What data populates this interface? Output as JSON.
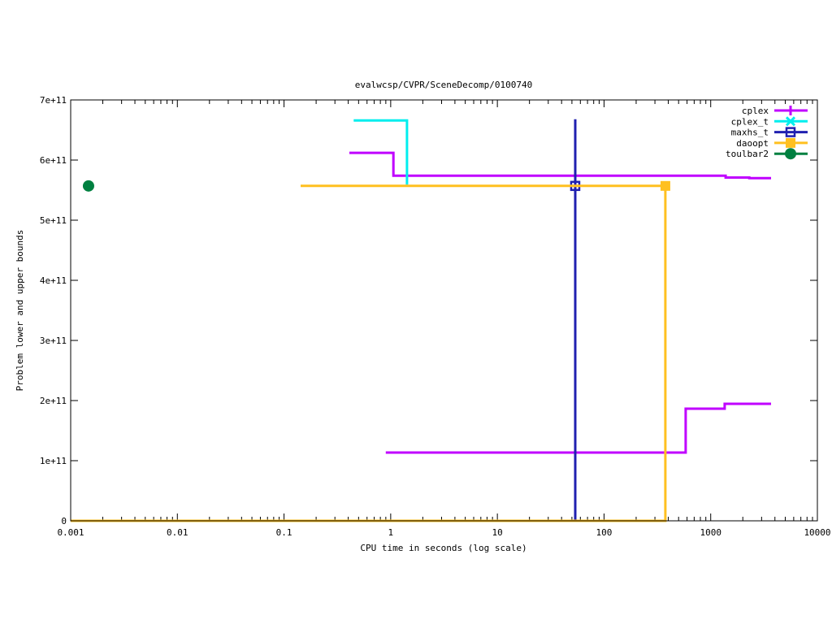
{
  "chart_data": {
    "type": "line",
    "title": "evalwcsp/CVPR/SceneDecomp/0100740",
    "xlabel": "CPU time in seconds (log scale)",
    "ylabel": "Problem lower and upper bounds",
    "xscale": "log",
    "xlim": [
      0.001,
      10000
    ],
    "ylim": [
      0,
      700000000000.0
    ],
    "grid": false,
    "legend_position": "top-right",
    "xticks": [
      {
        "value": 0.001,
        "label": "0.001"
      },
      {
        "value": 0.01,
        "label": "0.01"
      },
      {
        "value": 0.1,
        "label": "0.1"
      },
      {
        "value": 1,
        "label": "1"
      },
      {
        "value": 10,
        "label": "10"
      },
      {
        "value": 100,
        "label": "100"
      },
      {
        "value": 1000,
        "label": "1000"
      },
      {
        "value": 10000,
        "label": "10000"
      }
    ],
    "yticks": [
      {
        "value": 0,
        "label": "0"
      },
      {
        "value": 100000000000.0,
        "label": "1e+11"
      },
      {
        "value": 200000000000.0,
        "label": "2e+11"
      },
      {
        "value": 300000000000.0,
        "label": "3e+11"
      },
      {
        "value": 400000000000.0,
        "label": "4e+11"
      },
      {
        "value": 500000000000.0,
        "label": "5e+11"
      },
      {
        "value": 600000000000.0,
        "label": "6e+11"
      },
      {
        "value": 700000000000.0,
        "label": "7e+11"
      }
    ],
    "series": [
      {
        "name": "cplex",
        "color": "#c000ff",
        "marker": "plus",
        "lines": [
          [
            [
              0.41,
              612000000000.0
            ],
            [
              1.06,
              612000000000.0
            ],
            [
              1.06,
              574000000000.0
            ],
            [
              1380,
              574000000000.0
            ],
            [
              1380,
              571000000000.0
            ],
            [
              2300,
              571000000000.0
            ],
            [
              2300,
              570000000000.0
            ],
            [
              3680,
              570000000000.0
            ]
          ],
          [
            [
              0.9,
              113500000000.0
            ],
            [
              583,
              113500000000.0
            ],
            [
              583,
              186500000000.0
            ],
            [
              1352,
              186500000000.0
            ],
            [
              1352,
              194600000000.0
            ],
            [
              3680,
              194600000000.0
            ]
          ]
        ],
        "points": []
      },
      {
        "name": "cplex_t",
        "color": "#00eeee",
        "marker": "cross",
        "lines": [
          [
            [
              0.45,
              666000000000.0
            ],
            [
              1.42,
              666000000000.0
            ],
            [
              1.42,
              559000000000.0
            ]
          ]
        ],
        "points": []
      },
      {
        "name": "maxhs_t",
        "color": "#2020b0",
        "marker": "open-square",
        "lines": [
          [
            [
              53.7,
              0
            ],
            [
              53.7,
              668000000000.0
            ]
          ]
        ],
        "points": [
          [
            53.7,
            557000000000.0
          ]
        ]
      },
      {
        "name": "daoopt",
        "color": "#ffc020",
        "marker": "filled-square",
        "lines": [
          [
            [
              0.143,
              557000000000.0
            ],
            [
              376,
              557000000000.0
            ]
          ],
          [
            [
              0.001,
              0
            ],
            [
              376,
              0
            ],
            [
              376,
              557000000000.0
            ]
          ]
        ],
        "points": [
          [
            376,
            557000000000.0
          ]
        ]
      },
      {
        "name": "toulbar2",
        "color": "#008040",
        "marker": "filled-circle",
        "lines": [],
        "points": [
          [
            0.00147,
            557000000000.0
          ]
        ]
      }
    ]
  }
}
